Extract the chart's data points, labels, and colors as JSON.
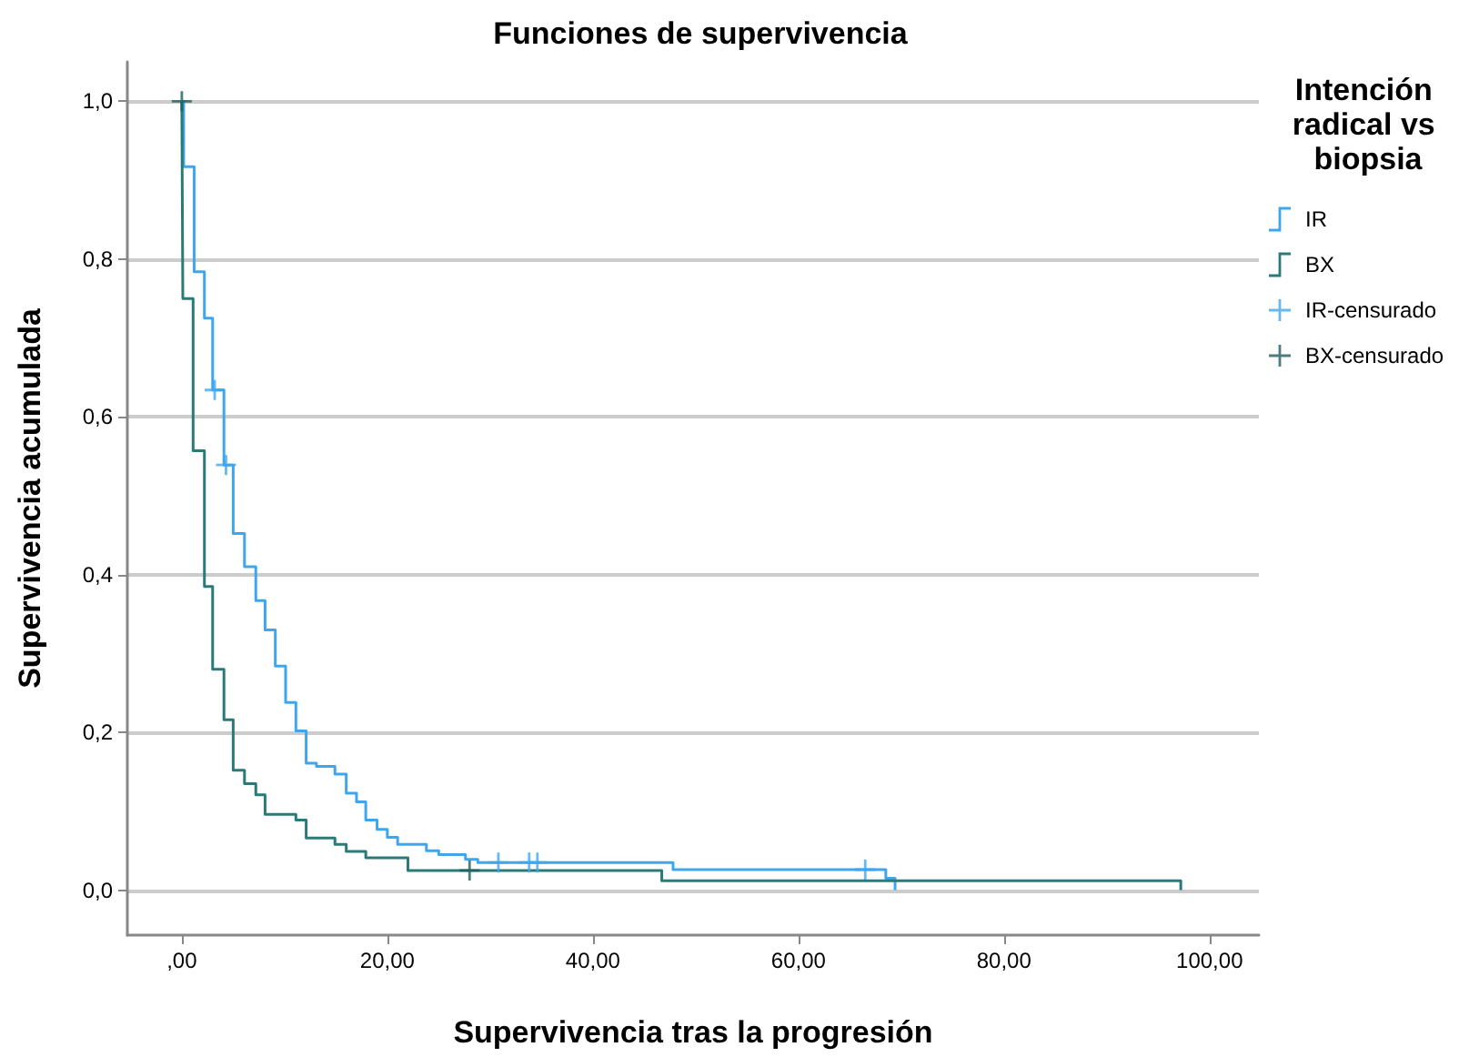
{
  "chart_data": {
    "type": "step",
    "title": "Funciones de supervivencia",
    "xlabel": "Supervivencia tras la progresión",
    "ylabel": "Supervivencia acumulada",
    "legend_title": "Intención radical vs biopsia",
    "legend": "right",
    "grid": "y",
    "xlim": [
      -5.3,
      104.8
    ],
    "ylim": [
      -0.057,
      1.05
    ],
    "xticks": [
      {
        "value": 0,
        "label": ",00"
      },
      {
        "value": 20,
        "label": "20,00"
      },
      {
        "value": 40,
        "label": "40,00"
      },
      {
        "value": 60,
        "label": "60,00"
      },
      {
        "value": 80,
        "label": "80,00"
      },
      {
        "value": 100,
        "label": "100,00"
      }
    ],
    "yticks": [
      {
        "value": 0,
        "label": "0,0"
      },
      {
        "value": 0.2,
        "label": "0,2"
      },
      {
        "value": 0.4,
        "label": "0,4"
      },
      {
        "value": 0.6,
        "label": "0,6"
      },
      {
        "value": 0.8,
        "label": "0,8"
      },
      {
        "value": 1,
        "label": "1,0"
      }
    ],
    "series": [
      {
        "name": "IR",
        "marker": "none",
        "color": "#3ea6ef",
        "x": [
          0,
          0.18,
          1.2,
          2.2,
          3.0,
          4.1,
          5.0,
          6.1,
          7.2,
          8.1,
          9.1,
          10.1,
          11.1,
          12.1,
          13.1,
          14.9,
          16.0,
          17.0,
          17.9,
          19.0,
          20.0,
          21.0,
          23.8,
          25.0,
          27.6,
          28.8,
          47.8,
          68.5,
          69.4
        ],
        "values": [
          1.0,
          0.917,
          0.784,
          0.725,
          0.634,
          0.539,
          0.452,
          0.41,
          0.367,
          0.33,
          0.284,
          0.238,
          0.202,
          0.161,
          0.157,
          0.147,
          0.123,
          0.112,
          0.089,
          0.077,
          0.067,
          0.058,
          0.05,
          0.045,
          0.039,
          0.035,
          0.026,
          0.015,
          0.0
        ]
      },
      {
        "name": "BX",
        "marker": "none",
        "color": "#2a7b78",
        "x": [
          0,
          0.1,
          1.1,
          2.2,
          3.0,
          4.1,
          5.0,
          6.1,
          7.2,
          8.1,
          11.1,
          12.1,
          14.9,
          16.0,
          17.9,
          22.0,
          46.7,
          97.2
        ],
        "values": [
          1.0,
          0.75,
          0.557,
          0.385,
          0.28,
          0.216,
          0.152,
          0.135,
          0.121,
          0.096,
          0.089,
          0.066,
          0.058,
          0.049,
          0.041,
          0.025,
          0.012,
          0.0
        ]
      },
      {
        "name": "IR-censurado",
        "type": "scatter",
        "marker": "cross",
        "color": "#3ea6ef",
        "x": [
          3.2,
          4.3,
          30.8,
          33.8,
          34.6,
          66.5
        ],
        "values": [
          0.634,
          0.539,
          0.035,
          0.035,
          0.035,
          0.026
        ]
      },
      {
        "name": "BX-censurado",
        "type": "scatter",
        "marker": "cross",
        "color": "#1d5f5c",
        "x": [
          0,
          28.0
        ],
        "values": [
          1.0,
          0.025
        ]
      }
    ]
  }
}
